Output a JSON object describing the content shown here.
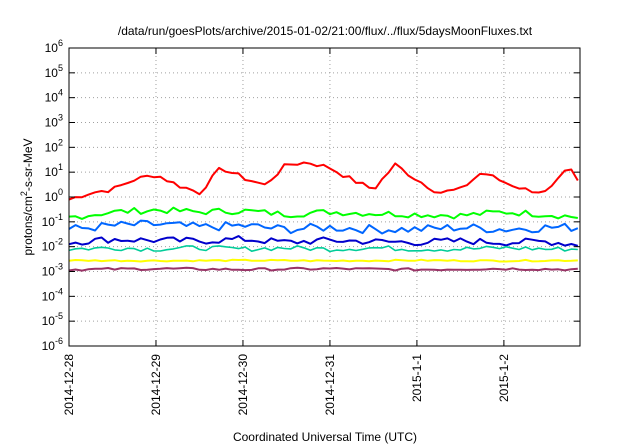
{
  "chart_data": {
    "type": "line",
    "title": "/data/run/goesPlots/archive/2015-01-02/21:00/flux/../flux/5daysMoonFluxes.txt",
    "xlabel": "Coordinated Universal Time (UTC)",
    "ylabel_parts": {
      "base": "protons/cm",
      "sup": "2",
      "rest": "-s-sr-MeV"
    },
    "x_scale": "time",
    "xlim": [
      "2014-12-28 00:00",
      "2015-01-02 21:00"
    ],
    "x_ticks": [
      "2014-12-28",
      "2014-12-29",
      "2014-12-30",
      "2014-12-31",
      "2015-1-1",
      "2015-1-2"
    ],
    "y_scale": "log",
    "ylim": [
      1e-06,
      1000000.0
    ],
    "y_ticks": [
      {
        "value": 1e-06,
        "base": "10",
        "exp": "-6"
      },
      {
        "value": 1e-05,
        "base": "10",
        "exp": "-5"
      },
      {
        "value": 0.0001,
        "base": "10",
        "exp": "-4"
      },
      {
        "value": 0.001,
        "base": "10",
        "exp": "-3"
      },
      {
        "value": 0.01,
        "base": "10",
        "exp": "-2"
      },
      {
        "value": 0.1,
        "base": "10",
        "exp": "-1"
      },
      {
        "value": 1,
        "base": "10",
        "exp": "0"
      },
      {
        "value": 10.0,
        "base": "10",
        "exp": "1"
      },
      {
        "value": 100.0,
        "base": "10",
        "exp": "2"
      },
      {
        "value": 1000.0,
        "base": "10",
        "exp": "3"
      },
      {
        "value": 10000.0,
        "base": "10",
        "exp": "4"
      },
      {
        "value": 100000.0,
        "base": "10",
        "exp": "5"
      },
      {
        "value": 1000000.0,
        "base": "10",
        "exp": "6"
      }
    ],
    "grid": true,
    "grid_style": "dotted",
    "legend": "none",
    "series": [
      {
        "color": "#ff0000",
        "x": [
          "2014-12-28 00:00",
          "2014-12-28 06:00",
          "2014-12-28 12:00",
          "2014-12-28 18:00",
          "2014-12-29 00:00",
          "2014-12-29 06:00",
          "2014-12-29 12:00",
          "2014-12-29 18:00",
          "2014-12-30 00:00",
          "2014-12-30 06:00",
          "2014-12-30 12:00",
          "2014-12-30 18:00",
          "2014-12-31 00:00",
          "2014-12-31 06:00",
          "2014-12-31 12:00",
          "2014-12-31 18:00",
          "2015-01-01 00:00",
          "2015-01-01 06:00",
          "2015-01-01 12:00",
          "2015-01-01 18:00",
          "2015-01-02 00:00",
          "2015-01-02 06:00",
          "2015-01-02 12:00",
          "2015-01-02 18:00",
          "2015-01-02 21:00"
        ],
        "y": [
          0.8,
          1.5,
          2,
          5,
          8,
          3,
          1.5,
          15,
          6,
          3,
          20,
          25,
          15,
          5,
          2,
          20,
          5,
          1.5,
          2,
          10,
          4,
          2,
          1.5,
          15,
          3
        ]
      },
      {
        "color": "#00ff00",
        "x": [
          "2014-12-28 00:00",
          "2014-12-28 12:00",
          "2014-12-29 00:00",
          "2014-12-29 12:00",
          "2014-12-30 00:00",
          "2014-12-30 12:00",
          "2014-12-31 00:00",
          "2014-12-31 12:00",
          "2015-01-01 00:00",
          "2015-01-01 12:00",
          "2015-01-02 00:00",
          "2015-01-02 12:00",
          "2015-01-02 21:00"
        ],
        "y": [
          0.15,
          0.25,
          0.3,
          0.25,
          0.28,
          0.2,
          0.25,
          0.22,
          0.2,
          0.18,
          0.25,
          0.2,
          0.15
        ]
      },
      {
        "color": "#0066ff",
        "x": [
          "2014-12-28 00:00",
          "2014-12-28 12:00",
          "2014-12-29 00:00",
          "2014-12-29 12:00",
          "2014-12-30 00:00",
          "2014-12-30 12:00",
          "2014-12-31 00:00",
          "2014-12-31 12:00",
          "2015-01-01 00:00",
          "2015-01-01 12:00",
          "2015-01-02 00:00",
          "2015-01-02 12:00",
          "2015-01-02 21:00"
        ],
        "y": [
          0.05,
          0.07,
          0.08,
          0.06,
          0.07,
          0.05,
          0.06,
          0.05,
          0.05,
          0.06,
          0.05,
          0.06,
          0.06
        ]
      },
      {
        "color": "#0000cc",
        "x": [
          "2014-12-28 00:00",
          "2014-12-28 12:00",
          "2014-12-29 00:00",
          "2014-12-29 12:00",
          "2014-12-30 00:00",
          "2014-12-30 12:00",
          "2014-12-31 00:00",
          "2014-12-31 12:00",
          "2015-01-01 00:00",
          "2015-01-01 12:00",
          "2015-01-02 00:00",
          "2015-01-02 12:00",
          "2015-01-02 21:00"
        ],
        "y": [
          0.015,
          0.02,
          0.018,
          0.017,
          0.02,
          0.015,
          0.018,
          0.016,
          0.015,
          0.017,
          0.015,
          0.016,
          0.012
        ]
      },
      {
        "color": "#00cc99",
        "x": [
          "2014-12-28 00:00",
          "2014-12-28 12:00",
          "2014-12-29 00:00",
          "2014-12-29 12:00",
          "2014-12-30 00:00",
          "2014-12-30 12:00",
          "2014-12-31 00:00",
          "2014-12-31 12:00",
          "2015-01-01 00:00",
          "2015-01-01 12:00",
          "2015-01-02 00:00",
          "2015-01-02 12:00",
          "2015-01-02 21:00"
        ],
        "y": [
          0.008,
          0.009,
          0.008,
          0.009,
          0.008,
          0.009,
          0.008,
          0.009,
          0.008,
          0.008,
          0.009,
          0.008,
          0.008
        ]
      },
      {
        "color": "#ffff00",
        "x": [
          "2014-12-28 00:00",
          "2014-12-29 00:00",
          "2014-12-30 00:00",
          "2014-12-31 00:00",
          "2015-01-01 00:00",
          "2015-01-02 00:00",
          "2015-01-02 21:00"
        ],
        "y": [
          0.0028,
          0.0027,
          0.0028,
          0.0027,
          0.0028,
          0.0027,
          0.0028
        ]
      },
      {
        "color": "#993366",
        "x": [
          "2014-12-28 00:00",
          "2014-12-29 00:00",
          "2014-12-30 00:00",
          "2014-12-31 00:00",
          "2015-01-01 00:00",
          "2015-01-02 00:00",
          "2015-01-02 21:00"
        ],
        "y": [
          0.0012,
          0.0013,
          0.0012,
          0.0013,
          0.0012,
          0.0013,
          0.0012
        ]
      }
    ]
  }
}
